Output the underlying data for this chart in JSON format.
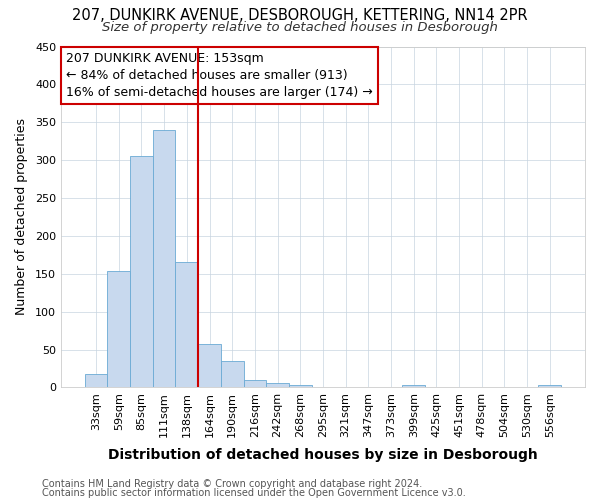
{
  "title1": "207, DUNKIRK AVENUE, DESBOROUGH, KETTERING, NN14 2PR",
  "title2": "Size of property relative to detached houses in Desborough",
  "xlabel": "Distribution of detached houses by size in Desborough",
  "ylabel": "Number of detached properties",
  "bar_labels": [
    "33sqm",
    "59sqm",
    "85sqm",
    "111sqm",
    "138sqm",
    "164sqm",
    "190sqm",
    "216sqm",
    "242sqm",
    "268sqm",
    "295sqm",
    "321sqm",
    "347sqm",
    "373sqm",
    "399sqm",
    "425sqm",
    "451sqm",
    "478sqm",
    "504sqm",
    "530sqm",
    "556sqm"
  ],
  "bar_values": [
    18,
    153,
    305,
    340,
    165,
    57,
    35,
    10,
    6,
    3,
    0,
    1,
    0,
    0,
    3,
    0,
    1,
    0,
    0,
    0,
    3
  ],
  "bar_color": "#c8d9ee",
  "bar_edgecolor": "#6aaad4",
  "vline_color": "#cc0000",
  "vline_pos": 5.0,
  "annotation_title": "207 DUNKIRK AVENUE: 153sqm",
  "annotation_line1": "← 84% of detached houses are smaller (913)",
  "annotation_line2": "16% of semi-detached houses are larger (174) →",
  "annotation_box_color": "#cc0000",
  "ylim": [
    0,
    450
  ],
  "yticks": [
    0,
    50,
    100,
    150,
    200,
    250,
    300,
    350,
    400,
    450
  ],
  "footnote1": "Contains HM Land Registry data © Crown copyright and database right 2024.",
  "footnote2": "Contains public sector information licensed under the Open Government Licence v3.0.",
  "bg_color": "#ffffff",
  "plot_bg_color": "#ffffff",
  "grid_color": "#c8d4e0",
  "title1_fontsize": 10.5,
  "title2_fontsize": 9.5,
  "xlabel_fontsize": 10,
  "ylabel_fontsize": 9,
  "tick_fontsize": 8,
  "annot_fontsize": 9,
  "footnote_fontsize": 7
}
